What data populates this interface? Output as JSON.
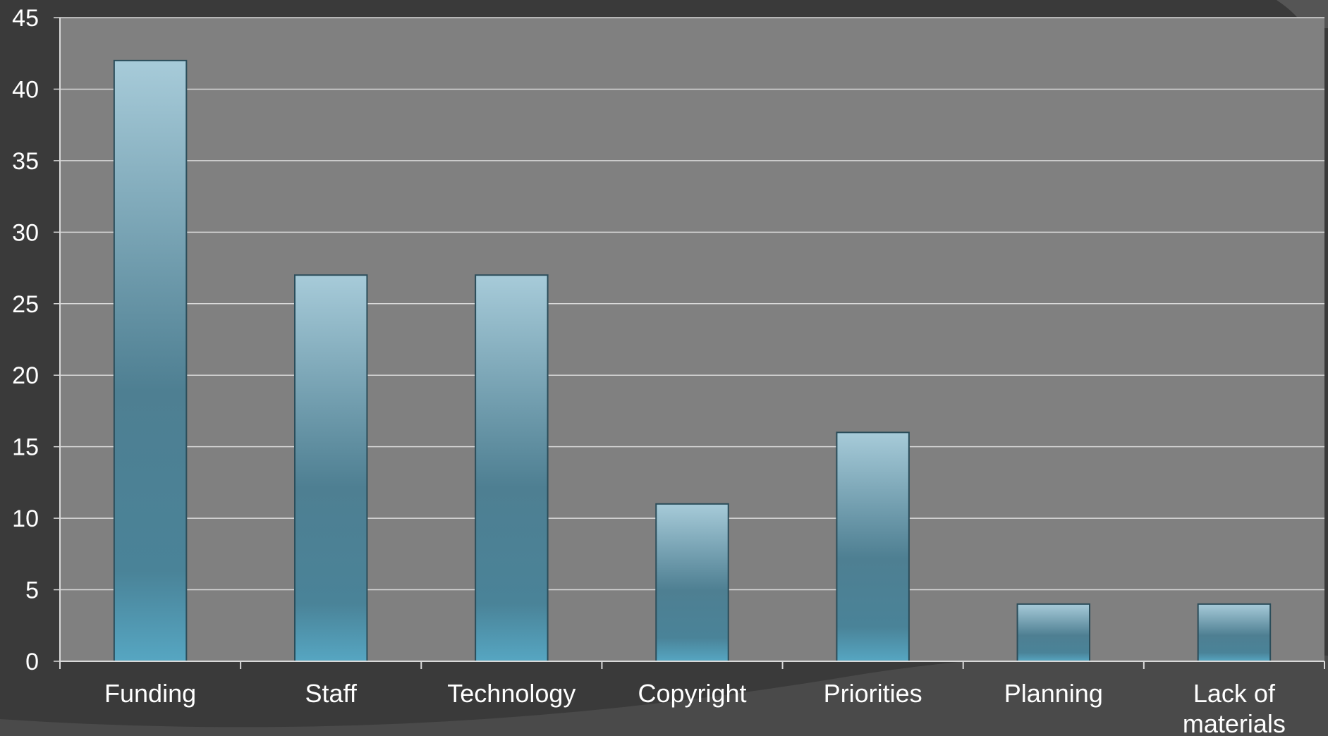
{
  "chart_data": {
    "type": "bar",
    "title": "",
    "xlabel": "",
    "ylabel": "",
    "categories": [
      "Funding",
      "Staff",
      "Technology",
      "Copyright",
      "Priorities",
      "Planning",
      "Lack of materials"
    ],
    "category_label_lines": [
      [
        "Funding"
      ],
      [
        "Staff"
      ],
      [
        "Technology"
      ],
      [
        "Copyright"
      ],
      [
        "Priorities"
      ],
      [
        "Planning"
      ],
      [
        "Lack of",
        "materials"
      ]
    ],
    "values": [
      42,
      27,
      27,
      11,
      16,
      4,
      4
    ],
    "ylim": [
      0,
      45
    ],
    "yticks": [
      0,
      5,
      10,
      15,
      20,
      25,
      30,
      35,
      40,
      45
    ],
    "grid": true,
    "legend": "none",
    "colors": {
      "page_background": "#3a3a3a",
      "plot_background": "#808080",
      "gridline": "#d9d9d9",
      "axis": "#d9d9d9",
      "bar_top": "#a7cbd9",
      "bar_mid": "#4e7f92",
      "bar_bottom": "#56a6c2",
      "bar_stroke": "#2b4d5a",
      "text": "#ffffff"
    }
  }
}
